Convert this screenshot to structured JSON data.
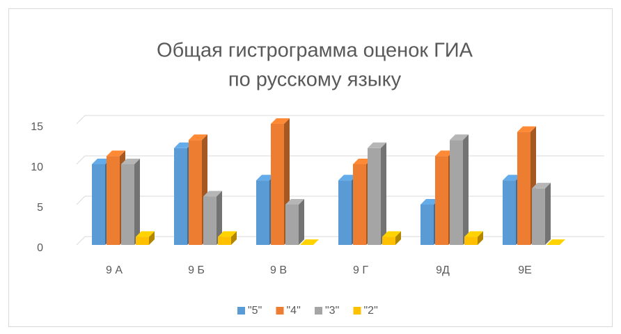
{
  "chart_data": {
    "type": "bar3d",
    "title": [
      "Общая гистрограмма оценок ГИА",
      "по русскому языку"
    ],
    "categories": [
      "9 А",
      "9 Б",
      "9 В",
      "9 Г",
      "9Д",
      "9Е"
    ],
    "series": [
      {
        "name": "\"5\"",
        "color": "#5b9bd5",
        "values": [
          10,
          12,
          8,
          8,
          5,
          8
        ]
      },
      {
        "name": "\"4\"",
        "color": "#ed7d31",
        "values": [
          11,
          13,
          15,
          10,
          11,
          14
        ]
      },
      {
        "name": "\"3\"",
        "color": "#a5a5a5",
        "values": [
          10,
          6,
          5,
          12,
          13,
          7
        ]
      },
      {
        "name": "\"2\"",
        "color": "#ffc000",
        "values": [
          1,
          1,
          0,
          1,
          1,
          0
        ]
      }
    ],
    "ylim": [
      0,
      15
    ],
    "yticks": [
      0,
      5,
      10,
      15
    ],
    "grid": true,
    "legend": "bottom"
  }
}
